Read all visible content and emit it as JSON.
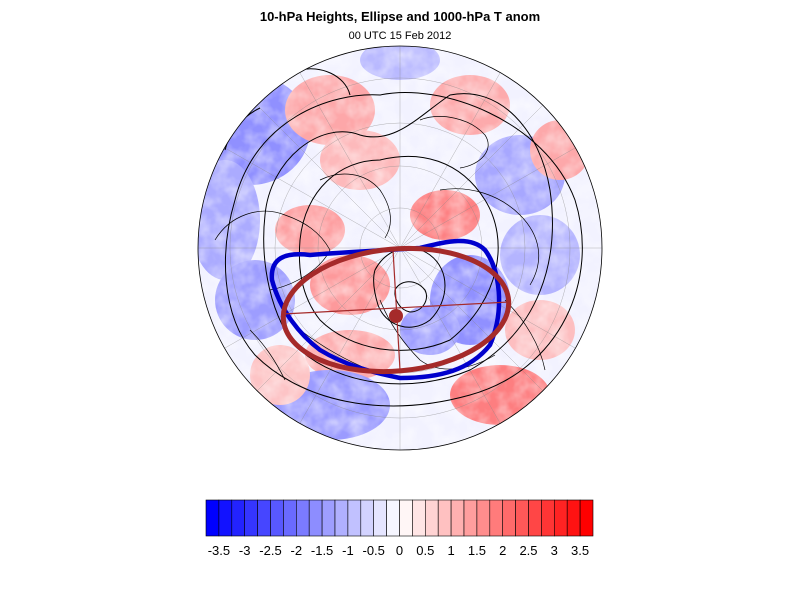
{
  "header": {
    "title": "10-hPa Heights, Ellipse and 1000-hPa T anom",
    "subtitle": "00 UTC 15 Feb 2012"
  },
  "colorbar": {
    "tick_labels": [
      "-3.5",
      "-3",
      "-2.5",
      "-2",
      "-1.5",
      "-1",
      "-0.5",
      "0",
      "0.5",
      "1",
      "1.5",
      "2",
      "2.5",
      "3",
      "3.5"
    ],
    "min": -3.75,
    "max": 3.75,
    "step": 0.25,
    "cold_color": "#0000ff",
    "neutral_color": "#ffffff",
    "warm_color": "#ff0000"
  },
  "map": {
    "projection": "polar stereographic (north pole)",
    "ellipse_color": "#a52a2a",
    "vortex_edge_color": "#0000cd",
    "height_contour_color": "#000000",
    "coastline_color": "#000000"
  }
}
